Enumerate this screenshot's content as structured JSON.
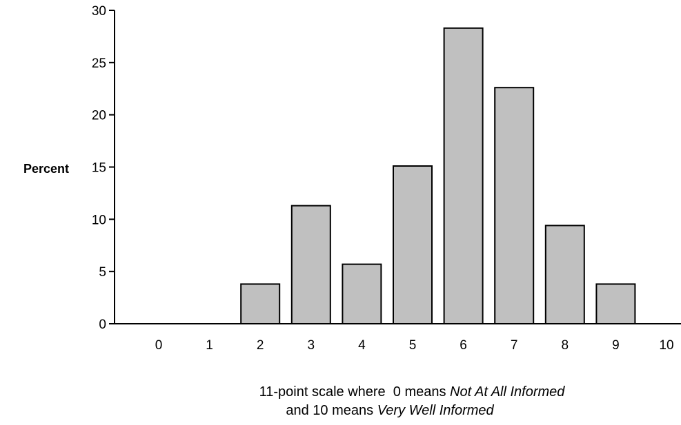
{
  "chart_data": {
    "type": "bar",
    "categories": [
      "0",
      "1",
      "2",
      "3",
      "4",
      "5",
      "6",
      "7",
      "8",
      "9",
      "10"
    ],
    "values": [
      0,
      0,
      3.8,
      11.3,
      5.7,
      15.1,
      28.3,
      22.6,
      9.4,
      3.8,
      0
    ],
    "ylim": [
      0,
      30
    ],
    "yticks": [
      "0",
      "5",
      "10",
      "15",
      "20",
      "25",
      "30"
    ],
    "ylabel": "Percent",
    "xlabel": {
      "line1_prefix": "11-point scale where  0 means ",
      "line1_emphasis": "Not  At All Informed",
      "line2_prefix": "and 10 means ",
      "line2_emphasis": "Very Well Informed"
    },
    "grid": false,
    "legend": "none",
    "bar_color": "#c0c0c0",
    "bar_edge_color": "#000000",
    "axis_color": "#000000"
  }
}
